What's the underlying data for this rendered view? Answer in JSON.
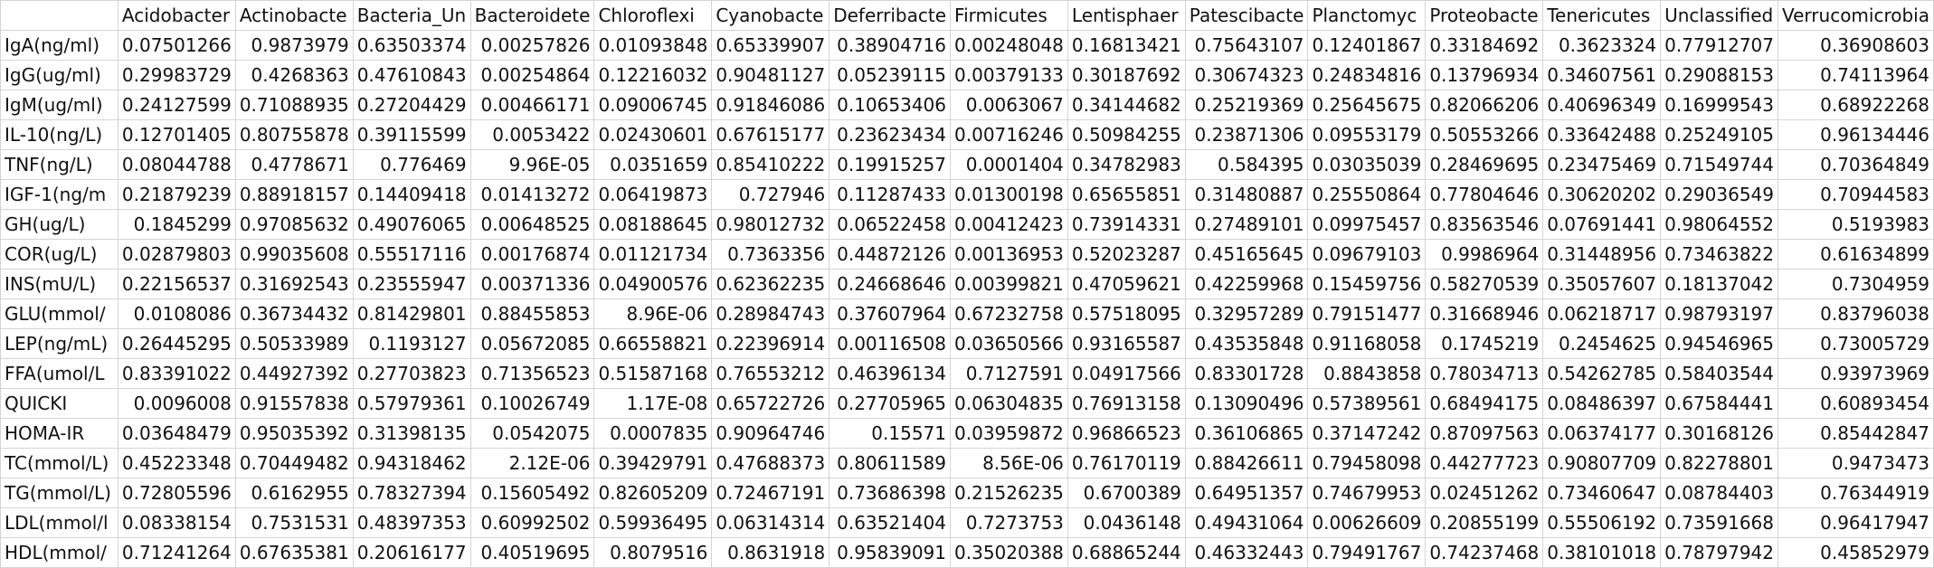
{
  "columns": [
    "",
    "Acidobacter",
    "Actinobacte",
    "Bacteria_Un",
    "Bacteroidete",
    "Chloroflexi",
    "Cyanobacte",
    "Deferribacte",
    "Firmicutes",
    "Lentisphaer",
    "Patescibacte",
    "Planctomyc",
    "Proteobacte",
    "Tenericutes",
    "Unclassified",
    "Verrucomicrobia"
  ],
  "rows": [
    {
      "label": "IgA(ng/ml)",
      "values": [
        "0.07501266",
        "0.9873979",
        "0.63503374",
        "0.00257826",
        "0.01093848",
        "0.65339907",
        "0.38904716",
        "0.00248048",
        "0.16813421",
        "0.75643107",
        "0.12401867",
        "0.33184692",
        "0.3623324",
        "0.77912707",
        "0.36908603"
      ]
    },
    {
      "label": "IgG(ug/ml)",
      "values": [
        "0.29983729",
        "0.4268363",
        "0.47610843",
        "0.00254864",
        "0.12216032",
        "0.90481127",
        "0.05239115",
        "0.00379133",
        "0.30187692",
        "0.30674323",
        "0.24834816",
        "0.13796934",
        "0.34607561",
        "0.29088153",
        "0.74113964"
      ]
    },
    {
      "label": "IgM(ug/ml)",
      "values": [
        "0.24127599",
        "0.71088935",
        "0.27204429",
        "0.00466171",
        "0.09006745",
        "0.91846086",
        "0.10653406",
        "0.0063067",
        "0.34144682",
        "0.25219369",
        "0.25645675",
        "0.82066206",
        "0.40696349",
        "0.16999543",
        "0.68922268"
      ]
    },
    {
      "label": "IL-10(ng/L)",
      "values": [
        "0.12701405",
        "0.80755878",
        "0.39115599",
        "0.0053422",
        "0.02430601",
        "0.67615177",
        "0.23623434",
        "0.00716246",
        "0.50984255",
        "0.23871306",
        "0.09553179",
        "0.50553266",
        "0.33642488",
        "0.25249105",
        "0.96134446"
      ]
    },
    {
      "label": "TNF(ng/L)",
      "values": [
        "0.08044788",
        "0.4778671",
        "0.776469",
        "9.96E-05",
        "0.0351659",
        "0.85410222",
        "0.19915257",
        "0.0001404",
        "0.34782983",
        "0.584395",
        "0.03035039",
        "0.28469695",
        "0.23475469",
        "0.71549744",
        "0.70364849"
      ]
    },
    {
      "label": "IGF-1(ng/m",
      "values": [
        "0.21879239",
        "0.88918157",
        "0.14409418",
        "0.01413272",
        "0.06419873",
        "0.727946",
        "0.11287433",
        "0.01300198",
        "0.65655851",
        "0.31480887",
        "0.25550864",
        "0.77804646",
        "0.30620202",
        "0.29036549",
        "0.70944583"
      ]
    },
    {
      "label": "GH(ug/L)",
      "values": [
        "0.1845299",
        "0.97085632",
        "0.49076065",
        "0.00648525",
        "0.08188645",
        "0.98012732",
        "0.06522458",
        "0.00412423",
        "0.73914331",
        "0.27489101",
        "0.09975457",
        "0.83563546",
        "0.07691441",
        "0.98064552",
        "0.5193983"
      ]
    },
    {
      "label": "COR(ug/L)",
      "values": [
        "0.02879803",
        "0.99035608",
        "0.55517116",
        "0.00176874",
        "0.01121734",
        "0.7363356",
        "0.44872126",
        "0.00136953",
        "0.52023287",
        "0.45165645",
        "0.09679103",
        "0.9986964",
        "0.31448956",
        "0.73463822",
        "0.61634899"
      ]
    },
    {
      "label": "INS(mU/L)",
      "values": [
        "0.22156537",
        "0.31692543",
        "0.23555947",
        "0.00371336",
        "0.04900576",
        "0.62362235",
        "0.24668646",
        "0.00399821",
        "0.47059621",
        "0.42259968",
        "0.15459756",
        "0.58270539",
        "0.35057607",
        "0.18137042",
        "0.7304959"
      ]
    },
    {
      "label": "GLU(mmol/",
      "values": [
        "0.0108086",
        "0.36734432",
        "0.81429801",
        "0.88455853",
        "8.96E-06",
        "0.28984743",
        "0.37607964",
        "0.67232758",
        "0.57518095",
        "0.32957289",
        "0.79151477",
        "0.31668946",
        "0.06218717",
        "0.98793197",
        "0.83796038"
      ]
    },
    {
      "label": "LEP(ng/mL)",
      "values": [
        "0.26445295",
        "0.50533989",
        "0.1193127",
        "0.05672085",
        "0.66558821",
        "0.22396914",
        "0.00116508",
        "0.03650566",
        "0.93165587",
        "0.43535848",
        "0.91168058",
        "0.1745219",
        "0.2454625",
        "0.94546965",
        "0.73005729"
      ]
    },
    {
      "label": "FFA(umol/L",
      "values": [
        "0.83391022",
        "0.44927392",
        "0.27703823",
        "0.71356523",
        "0.51587168",
        "0.76553212",
        "0.46396134",
        "0.7127591",
        "0.04917566",
        "0.83301728",
        "0.8843858",
        "0.78034713",
        "0.54262785",
        "0.58403544",
        "0.93973969"
      ]
    },
    {
      "label": "QUICKI",
      "values": [
        "0.0096008",
        "0.91557838",
        "0.57979361",
        "0.10026749",
        "1.17E-08",
        "0.65722726",
        "0.27705965",
        "0.06304835",
        "0.76913158",
        "0.13090496",
        "0.57389561",
        "0.68494175",
        "0.08486397",
        "0.67584441",
        "0.60893454"
      ]
    },
    {
      "label": "HOMA-IR",
      "values": [
        "0.03648479",
        "0.95035392",
        "0.31398135",
        "0.0542075",
        "0.0007835",
        "0.90964746",
        "0.15571",
        "0.03959872",
        "0.96866523",
        "0.36106865",
        "0.37147242",
        "0.87097563",
        "0.06374177",
        "0.30168126",
        "0.85442847"
      ]
    },
    {
      "label": "TC(mmol/L)",
      "values": [
        "0.45223348",
        "0.70449482",
        "0.94318462",
        "2.12E-06",
        "0.39429791",
        "0.47688373",
        "0.80611589",
        "8.56E-06",
        "0.76170119",
        "0.88426611",
        "0.79458098",
        "0.44277723",
        "0.90807709",
        "0.82278801",
        "0.9473473"
      ]
    },
    {
      "label": "TG(mmol/L)",
      "values": [
        "0.72805596",
        "0.6162955",
        "0.78327394",
        "0.15605492",
        "0.82605209",
        "0.72467191",
        "0.73686398",
        "0.21526235",
        "0.6700389",
        "0.64951357",
        "0.74679953",
        "0.02451262",
        "0.73460647",
        "0.08784403",
        "0.76344919"
      ]
    },
    {
      "label": "LDL(mmol/l",
      "values": [
        "0.08338154",
        "0.7531531",
        "0.48397353",
        "0.60992502",
        "0.59936495",
        "0.06314314",
        "0.63521404",
        "0.7273753",
        "0.0436148",
        "0.49431064",
        "0.00626609",
        "0.20855199",
        "0.55506192",
        "0.73591668",
        "0.96417947"
      ]
    },
    {
      "label": "HDL(mmol/",
      "values": [
        "0.71241264",
        "0.67635381",
        "0.20616177",
        "0.40519695",
        "0.8079516",
        "0.8631918",
        "0.95839091",
        "0.35020388",
        "0.68865244",
        "0.46332443",
        "0.79491767",
        "0.74237468",
        "0.38101018",
        "0.78797942",
        "0.45852979"
      ]
    }
  ]
}
